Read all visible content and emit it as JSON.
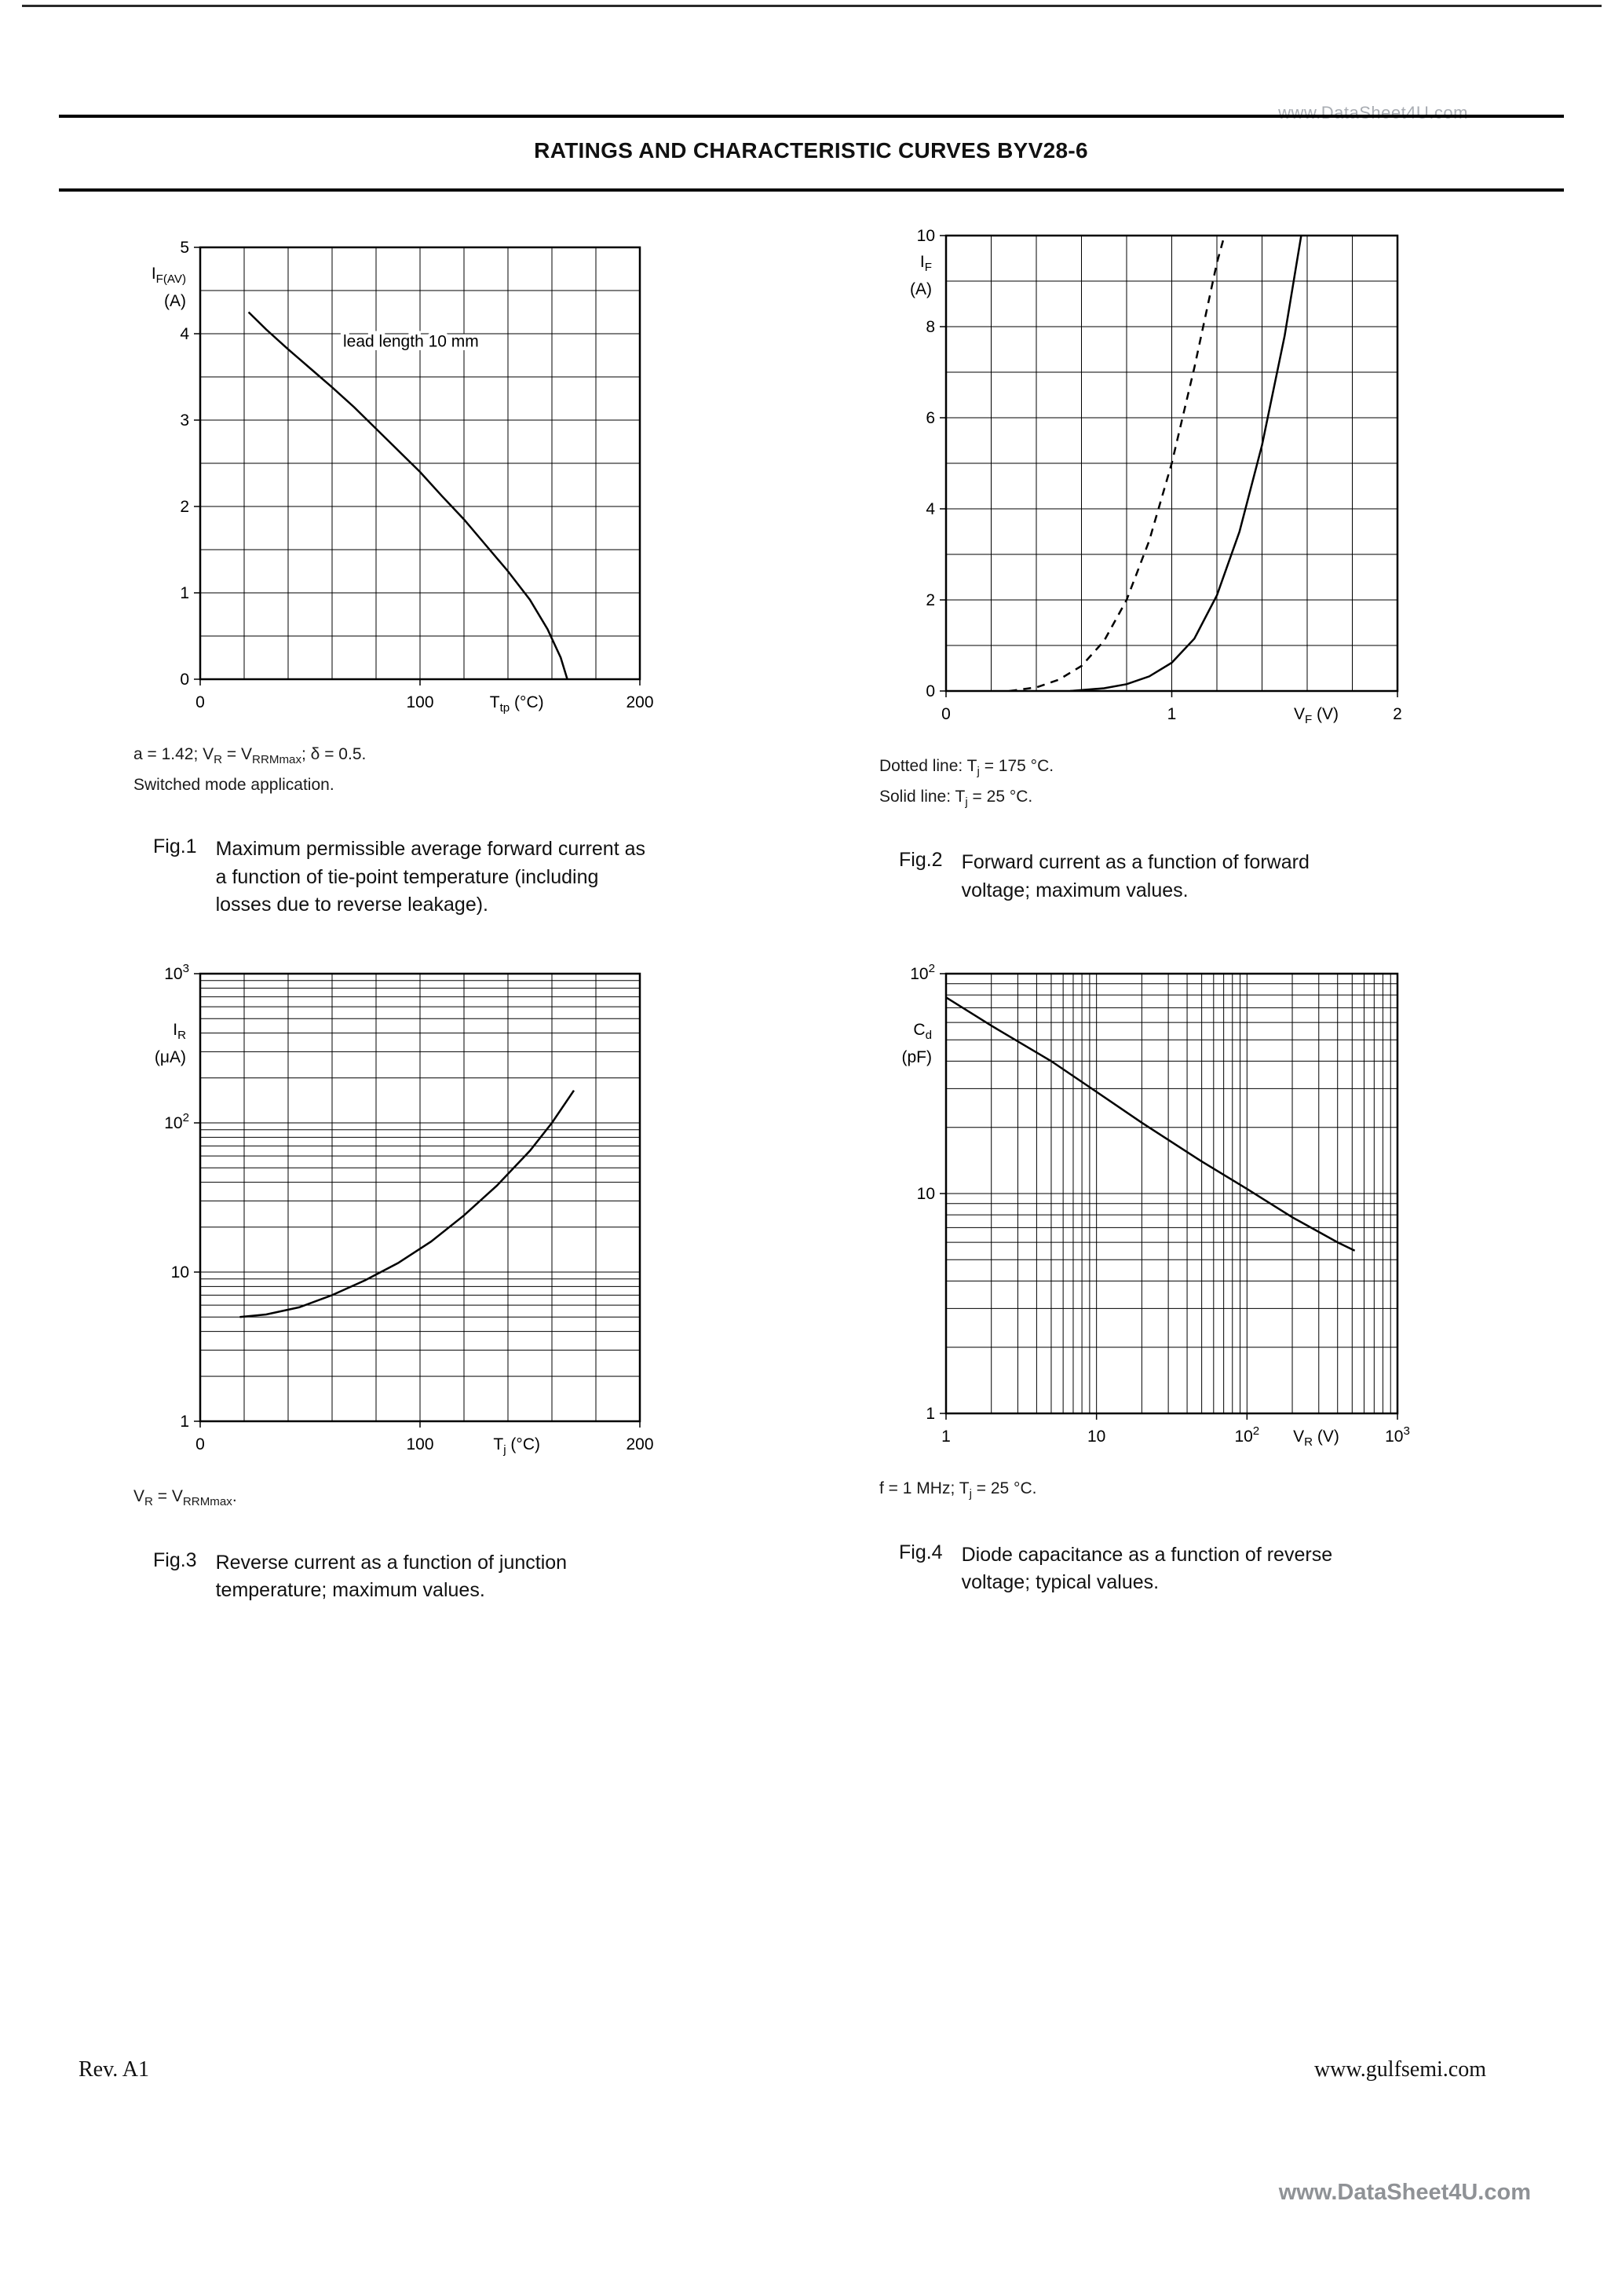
{
  "page": {
    "header": {
      "title": "RATINGS AND CHARACTERISTIC CURVES BYV28-6"
    },
    "watermark_top": "www.DataSheet4U.com",
    "watermark_bottom": "www.DataSheet4U.com",
    "footer": {
      "rev": "Rev. A1",
      "site": "www.gulfsemi.com"
    }
  },
  "figures": [
    {
      "id": "fig1",
      "notes": [
        "a = 1.42; V_{R} = V_{RRMmax}; δ = 0.5.",
        "Switched mode application."
      ],
      "caption_label": "Fig.1",
      "caption": "Maximum permissible average forward current as a function of tie-point temperature (including losses due to reverse leakage)."
    },
    {
      "id": "fig2",
      "notes": [
        "Dotted line: T_{j} = 175 °C.",
        "Solid line: T_{j} = 25 °C."
      ],
      "caption_label": "Fig.2",
      "caption": "Forward current as a function of forward voltage; maximum values."
    },
    {
      "id": "fig3",
      "notes": [
        "V_{R} = V_{RRMmax}."
      ],
      "caption_label": "Fig.3",
      "caption": "Reverse current as a function of junction temperature; maximum values."
    },
    {
      "id": "fig4",
      "notes": [
        "f = 1 MHz; T_{j} = 25 °C."
      ],
      "caption_label": "Fig.4",
      "caption": "Diode capacitance as a function of reverse voltage; typical values."
    }
  ],
  "chart_data": [
    {
      "id": "fig1",
      "type": "line",
      "x": {
        "scale": "linear",
        "min": 0,
        "max": 200,
        "grid_step": 20,
        "label": "T_{tp} (°C)",
        "label_pos": 0.72,
        "ticks": [
          {
            "v": 0,
            "label": "0"
          },
          {
            "v": 100,
            "label": "100"
          },
          {
            "v": 200,
            "label": "200"
          }
        ]
      },
      "y": {
        "scale": "linear",
        "min": 0,
        "max": 5,
        "grid_step": 0.5,
        "label": "I_{F(AV)}",
        "unit": "(A)",
        "label_dy": 40,
        "ticks": [
          {
            "v": 0,
            "label": "0"
          },
          {
            "v": 1,
            "label": "1"
          },
          {
            "v": 2,
            "label": "2"
          },
          {
            "v": 3,
            "label": "3"
          },
          {
            "v": 4,
            "label": "4"
          },
          {
            "v": 5,
            "label": "5"
          }
        ]
      },
      "series": [
        {
          "name": "maximum average forward current (lead length 10 mm)",
          "style": "solid",
          "points": [
            [
              22,
              4.25
            ],
            [
              30,
              4.05
            ],
            [
              40,
              3.82
            ],
            [
              50,
              3.6
            ],
            [
              60,
              3.38
            ],
            [
              70,
              3.15
            ],
            [
              80,
              2.9
            ],
            [
              90,
              2.65
            ],
            [
              100,
              2.4
            ],
            [
              110,
              2.12
            ],
            [
              120,
              1.85
            ],
            [
              130,
              1.55
            ],
            [
              140,
              1.25
            ],
            [
              150,
              0.92
            ],
            [
              158,
              0.58
            ],
            [
              164,
              0.25
            ],
            [
              167,
              0
            ]
          ]
        }
      ],
      "annotations": [
        {
          "x": 65,
          "y": 3.85,
          "text": "lead length 10 mm"
        }
      ]
    },
    {
      "id": "fig2",
      "type": "line",
      "x": {
        "scale": "linear",
        "min": 0,
        "max": 2,
        "grid_step": 0.2,
        "label": "V_{F} (V)",
        "label_pos": 0.82,
        "ticks": [
          {
            "v": 0,
            "label": "0"
          },
          {
            "v": 1,
            "label": "1"
          },
          {
            "v": 2,
            "label": "2"
          }
        ]
      },
      "y": {
        "scale": "linear",
        "min": 0,
        "max": 10,
        "grid_step": 1,
        "label": "I_{F}",
        "unit": "(A)",
        "label_dy": 40,
        "ticks": [
          {
            "v": 0,
            "label": "0"
          },
          {
            "v": 2,
            "label": "2"
          },
          {
            "v": 4,
            "label": "4"
          },
          {
            "v": 6,
            "label": "6"
          },
          {
            "v": 8,
            "label": "8"
          },
          {
            "v": 10,
            "label": "10"
          }
        ]
      },
      "series": [
        {
          "name": "Tj = 175 °C",
          "style": "dashed",
          "points": [
            [
              0.28,
              0
            ],
            [
              0.4,
              0.08
            ],
            [
              0.5,
              0.25
            ],
            [
              0.6,
              0.55
            ],
            [
              0.7,
              1.1
            ],
            [
              0.8,
              2.0
            ],
            [
              0.9,
              3.3
            ],
            [
              1.0,
              5.0
            ],
            [
              1.1,
              7.1
            ],
            [
              1.2,
              9.4
            ],
            [
              1.25,
              10.3
            ]
          ]
        },
        {
          "name": "Tj = 25 °C",
          "style": "solid",
          "points": [
            [
              0.55,
              0
            ],
            [
              0.7,
              0.06
            ],
            [
              0.8,
              0.15
            ],
            [
              0.9,
              0.32
            ],
            [
              1.0,
              0.62
            ],
            [
              1.1,
              1.15
            ],
            [
              1.2,
              2.1
            ],
            [
              1.3,
              3.5
            ],
            [
              1.4,
              5.4
            ],
            [
              1.5,
              7.8
            ],
            [
              1.58,
              10.2
            ]
          ]
        }
      ],
      "annotations": []
    },
    {
      "id": "fig3",
      "type": "line",
      "x": {
        "scale": "linear",
        "min": 0,
        "max": 200,
        "grid_step": 20,
        "label": "T_{j} (°C)",
        "label_pos": 0.72,
        "ticks": [
          {
            "v": 0,
            "label": "0"
          },
          {
            "v": 100,
            "label": "100"
          },
          {
            "v": 200,
            "label": "200"
          }
        ]
      },
      "y": {
        "scale": "log",
        "min": 1,
        "max": 1000,
        "label": "I_{R}",
        "unit": "(μA)",
        "label_dy": 78,
        "ticks": [
          {
            "v": 1,
            "label": "1"
          },
          {
            "v": 10,
            "label": "10"
          },
          {
            "v": 100,
            "label": "10^{2}"
          },
          {
            "v": 1000,
            "label": "10^{3}"
          }
        ]
      },
      "series": [
        {
          "name": "maximum reverse current",
          "style": "solid",
          "points": [
            [
              18,
              5
            ],
            [
              30,
              5.2
            ],
            [
              45,
              5.8
            ],
            [
              60,
              7
            ],
            [
              75,
              8.8
            ],
            [
              90,
              11.5
            ],
            [
              105,
              16
            ],
            [
              120,
              24
            ],
            [
              135,
              38
            ],
            [
              150,
              65
            ],
            [
              160,
              100
            ],
            [
              170,
              165
            ]
          ]
        }
      ],
      "annotations": []
    },
    {
      "id": "fig4",
      "type": "line",
      "x": {
        "scale": "log",
        "min": 1,
        "max": 1000,
        "label": "V_{R} (V)",
        "label_pos": 0.82,
        "ticks": [
          {
            "v": 1,
            "label": "1"
          },
          {
            "v": 10,
            "label": "10"
          },
          {
            "v": 100,
            "label": "10^{2}"
          },
          {
            "v": 1000,
            "label": "10^{3}"
          }
        ]
      },
      "y": {
        "scale": "log",
        "min": 1,
        "max": 100,
        "label": "C_{d}",
        "unit": "(pF)",
        "label_dy": 78,
        "ticks": [
          {
            "v": 1,
            "label": "1"
          },
          {
            "v": 10,
            "label": "10"
          },
          {
            "v": 100,
            "label": "10^{2}"
          }
        ]
      },
      "series": [
        {
          "name": "typical diode capacitance",
          "style": "solid",
          "points": [
            [
              1,
              78
            ],
            [
              2,
              58
            ],
            [
              5,
              40
            ],
            [
              10,
              29
            ],
            [
              20,
              21
            ],
            [
              50,
              14
            ],
            [
              100,
              10.5
            ],
            [
              200,
              7.8
            ],
            [
              400,
              6.0
            ],
            [
              520,
              5.5
            ]
          ]
        }
      ],
      "annotations": []
    }
  ]
}
